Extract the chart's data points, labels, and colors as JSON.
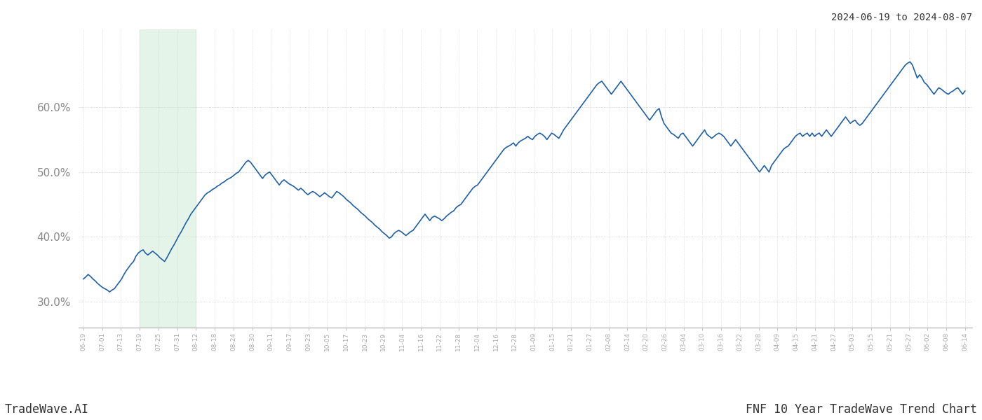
{
  "title_top_right": "2024-06-19 to 2024-08-07",
  "bottom_left": "TradeWave.AI",
  "bottom_right": "FNF 10 Year TradeWave Trend Chart",
  "line_color": "#2060a8",
  "line_width": 1.2,
  "shade_color": "#d4edda",
  "shade_alpha": 0.6,
  "bg_color": "#ffffff",
  "grid_color": "#cccccc",
  "yticks": [
    30.0,
    40.0,
    50.0,
    60.0
  ],
  "ylim": [
    26.0,
    72.0
  ],
  "x_labels": [
    "06-19",
    "07-01",
    "07-13",
    "07-19",
    "07-25",
    "07-31",
    "08-12",
    "08-18",
    "08-24",
    "08-30",
    "09-11",
    "09-17",
    "09-23",
    "10-05",
    "10-17",
    "10-23",
    "10-29",
    "11-04",
    "11-16",
    "11-22",
    "11-28",
    "12-04",
    "12-16",
    "12-28",
    "01-09",
    "01-15",
    "01-21",
    "01-27",
    "02-08",
    "02-14",
    "02-20",
    "02-26",
    "03-04",
    "03-10",
    "03-16",
    "03-22",
    "03-28",
    "04-09",
    "04-15",
    "04-21",
    "04-27",
    "05-03",
    "05-15",
    "05-21",
    "05-27",
    "06-02",
    "06-08",
    "06-14"
  ],
  "shade_x_start_label": "07-19",
  "shade_x_end_label": "08-12",
  "y_values": [
    33.5,
    33.8,
    34.2,
    33.9,
    33.5,
    33.2,
    32.8,
    32.5,
    32.2,
    32.0,
    31.8,
    31.5,
    31.8,
    32.0,
    32.5,
    33.0,
    33.5,
    34.2,
    34.8,
    35.3,
    35.8,
    36.2,
    37.0,
    37.5,
    37.8,
    38.0,
    37.5,
    37.2,
    37.5,
    37.8,
    37.5,
    37.2,
    36.8,
    36.5,
    36.2,
    36.8,
    37.5,
    38.2,
    38.8,
    39.5,
    40.2,
    40.8,
    41.5,
    42.2,
    42.8,
    43.5,
    44.0,
    44.5,
    45.0,
    45.5,
    46.0,
    46.5,
    46.8,
    47.0,
    47.3,
    47.5,
    47.8,
    48.0,
    48.3,
    48.5,
    48.8,
    49.0,
    49.2,
    49.5,
    49.8,
    50.0,
    50.5,
    51.0,
    51.5,
    51.8,
    51.5,
    51.0,
    50.5,
    50.0,
    49.5,
    49.0,
    49.5,
    49.8,
    50.0,
    49.5,
    49.0,
    48.5,
    48.0,
    48.5,
    48.8,
    48.5,
    48.2,
    48.0,
    47.8,
    47.5,
    47.2,
    47.5,
    47.2,
    46.8,
    46.5,
    46.8,
    47.0,
    46.8,
    46.5,
    46.2,
    46.5,
    46.8,
    46.5,
    46.2,
    46.0,
    46.5,
    47.0,
    46.8,
    46.5,
    46.2,
    45.8,
    45.5,
    45.2,
    44.8,
    44.5,
    44.2,
    43.8,
    43.5,
    43.2,
    42.8,
    42.5,
    42.2,
    41.8,
    41.5,
    41.2,
    40.8,
    40.5,
    40.2,
    39.8,
    40.0,
    40.5,
    40.8,
    41.0,
    40.8,
    40.5,
    40.2,
    40.5,
    40.8,
    41.0,
    41.5,
    42.0,
    42.5,
    43.0,
    43.5,
    43.0,
    42.5,
    43.0,
    43.2,
    43.0,
    42.8,
    42.5,
    42.8,
    43.2,
    43.5,
    43.8,
    44.0,
    44.5,
    44.8,
    45.0,
    45.5,
    46.0,
    46.5,
    47.0,
    47.5,
    47.8,
    48.0,
    48.5,
    49.0,
    49.5,
    50.0,
    50.5,
    51.0,
    51.5,
    52.0,
    52.5,
    53.0,
    53.5,
    53.8,
    54.0,
    54.2,
    54.5,
    54.0,
    54.5,
    54.8,
    55.0,
    55.2,
    55.5,
    55.2,
    55.0,
    55.5,
    55.8,
    56.0,
    55.8,
    55.5,
    55.0,
    55.5,
    56.0,
    55.8,
    55.5,
    55.2,
    55.8,
    56.5,
    57.0,
    57.5,
    58.0,
    58.5,
    59.0,
    59.5,
    60.0,
    60.5,
    61.0,
    61.5,
    62.0,
    62.5,
    63.0,
    63.5,
    63.8,
    64.0,
    63.5,
    63.0,
    62.5,
    62.0,
    62.5,
    63.0,
    63.5,
    64.0,
    63.5,
    63.0,
    62.5,
    62.0,
    61.5,
    61.0,
    60.5,
    60.0,
    59.5,
    59.0,
    58.5,
    58.0,
    58.5,
    59.0,
    59.5,
    59.8,
    58.5,
    57.5,
    57.0,
    56.5,
    56.0,
    55.8,
    55.5,
    55.2,
    55.8,
    56.0,
    55.5,
    55.0,
    54.5,
    54.0,
    54.5,
    55.0,
    55.5,
    56.0,
    56.5,
    55.8,
    55.5,
    55.2,
    55.5,
    55.8,
    56.0,
    55.8,
    55.5,
    55.0,
    54.5,
    54.0,
    54.5,
    55.0,
    54.5,
    54.0,
    53.5,
    53.0,
    52.5,
    52.0,
    51.5,
    51.0,
    50.5,
    50.0,
    50.5,
    51.0,
    50.5,
    50.0,
    51.0,
    51.5,
    52.0,
    52.5,
    53.0,
    53.5,
    53.8,
    54.0,
    54.5,
    55.0,
    55.5,
    55.8,
    56.0,
    55.5,
    55.8,
    56.0,
    55.5,
    56.0,
    55.5,
    55.8,
    56.0,
    55.5,
    56.0,
    56.5,
    56.0,
    55.5,
    56.0,
    56.5,
    57.0,
    57.5,
    58.0,
    58.5,
    58.0,
    57.5,
    57.8,
    58.0,
    57.5,
    57.2,
    57.5,
    58.0,
    58.5,
    59.0,
    59.5,
    60.0,
    60.5,
    61.0,
    61.5,
    62.0,
    62.5,
    63.0,
    63.5,
    64.0,
    64.5,
    65.0,
    65.5,
    66.0,
    66.5,
    66.8,
    67.0,
    66.5,
    65.5,
    64.5,
    65.0,
    64.5,
    63.8,
    63.5,
    63.0,
    62.5,
    62.0,
    62.5,
    63.0,
    62.8,
    62.5,
    62.2,
    62.0,
    62.3,
    62.5,
    62.8,
    63.0,
    62.5,
    62.0,
    62.5
  ]
}
